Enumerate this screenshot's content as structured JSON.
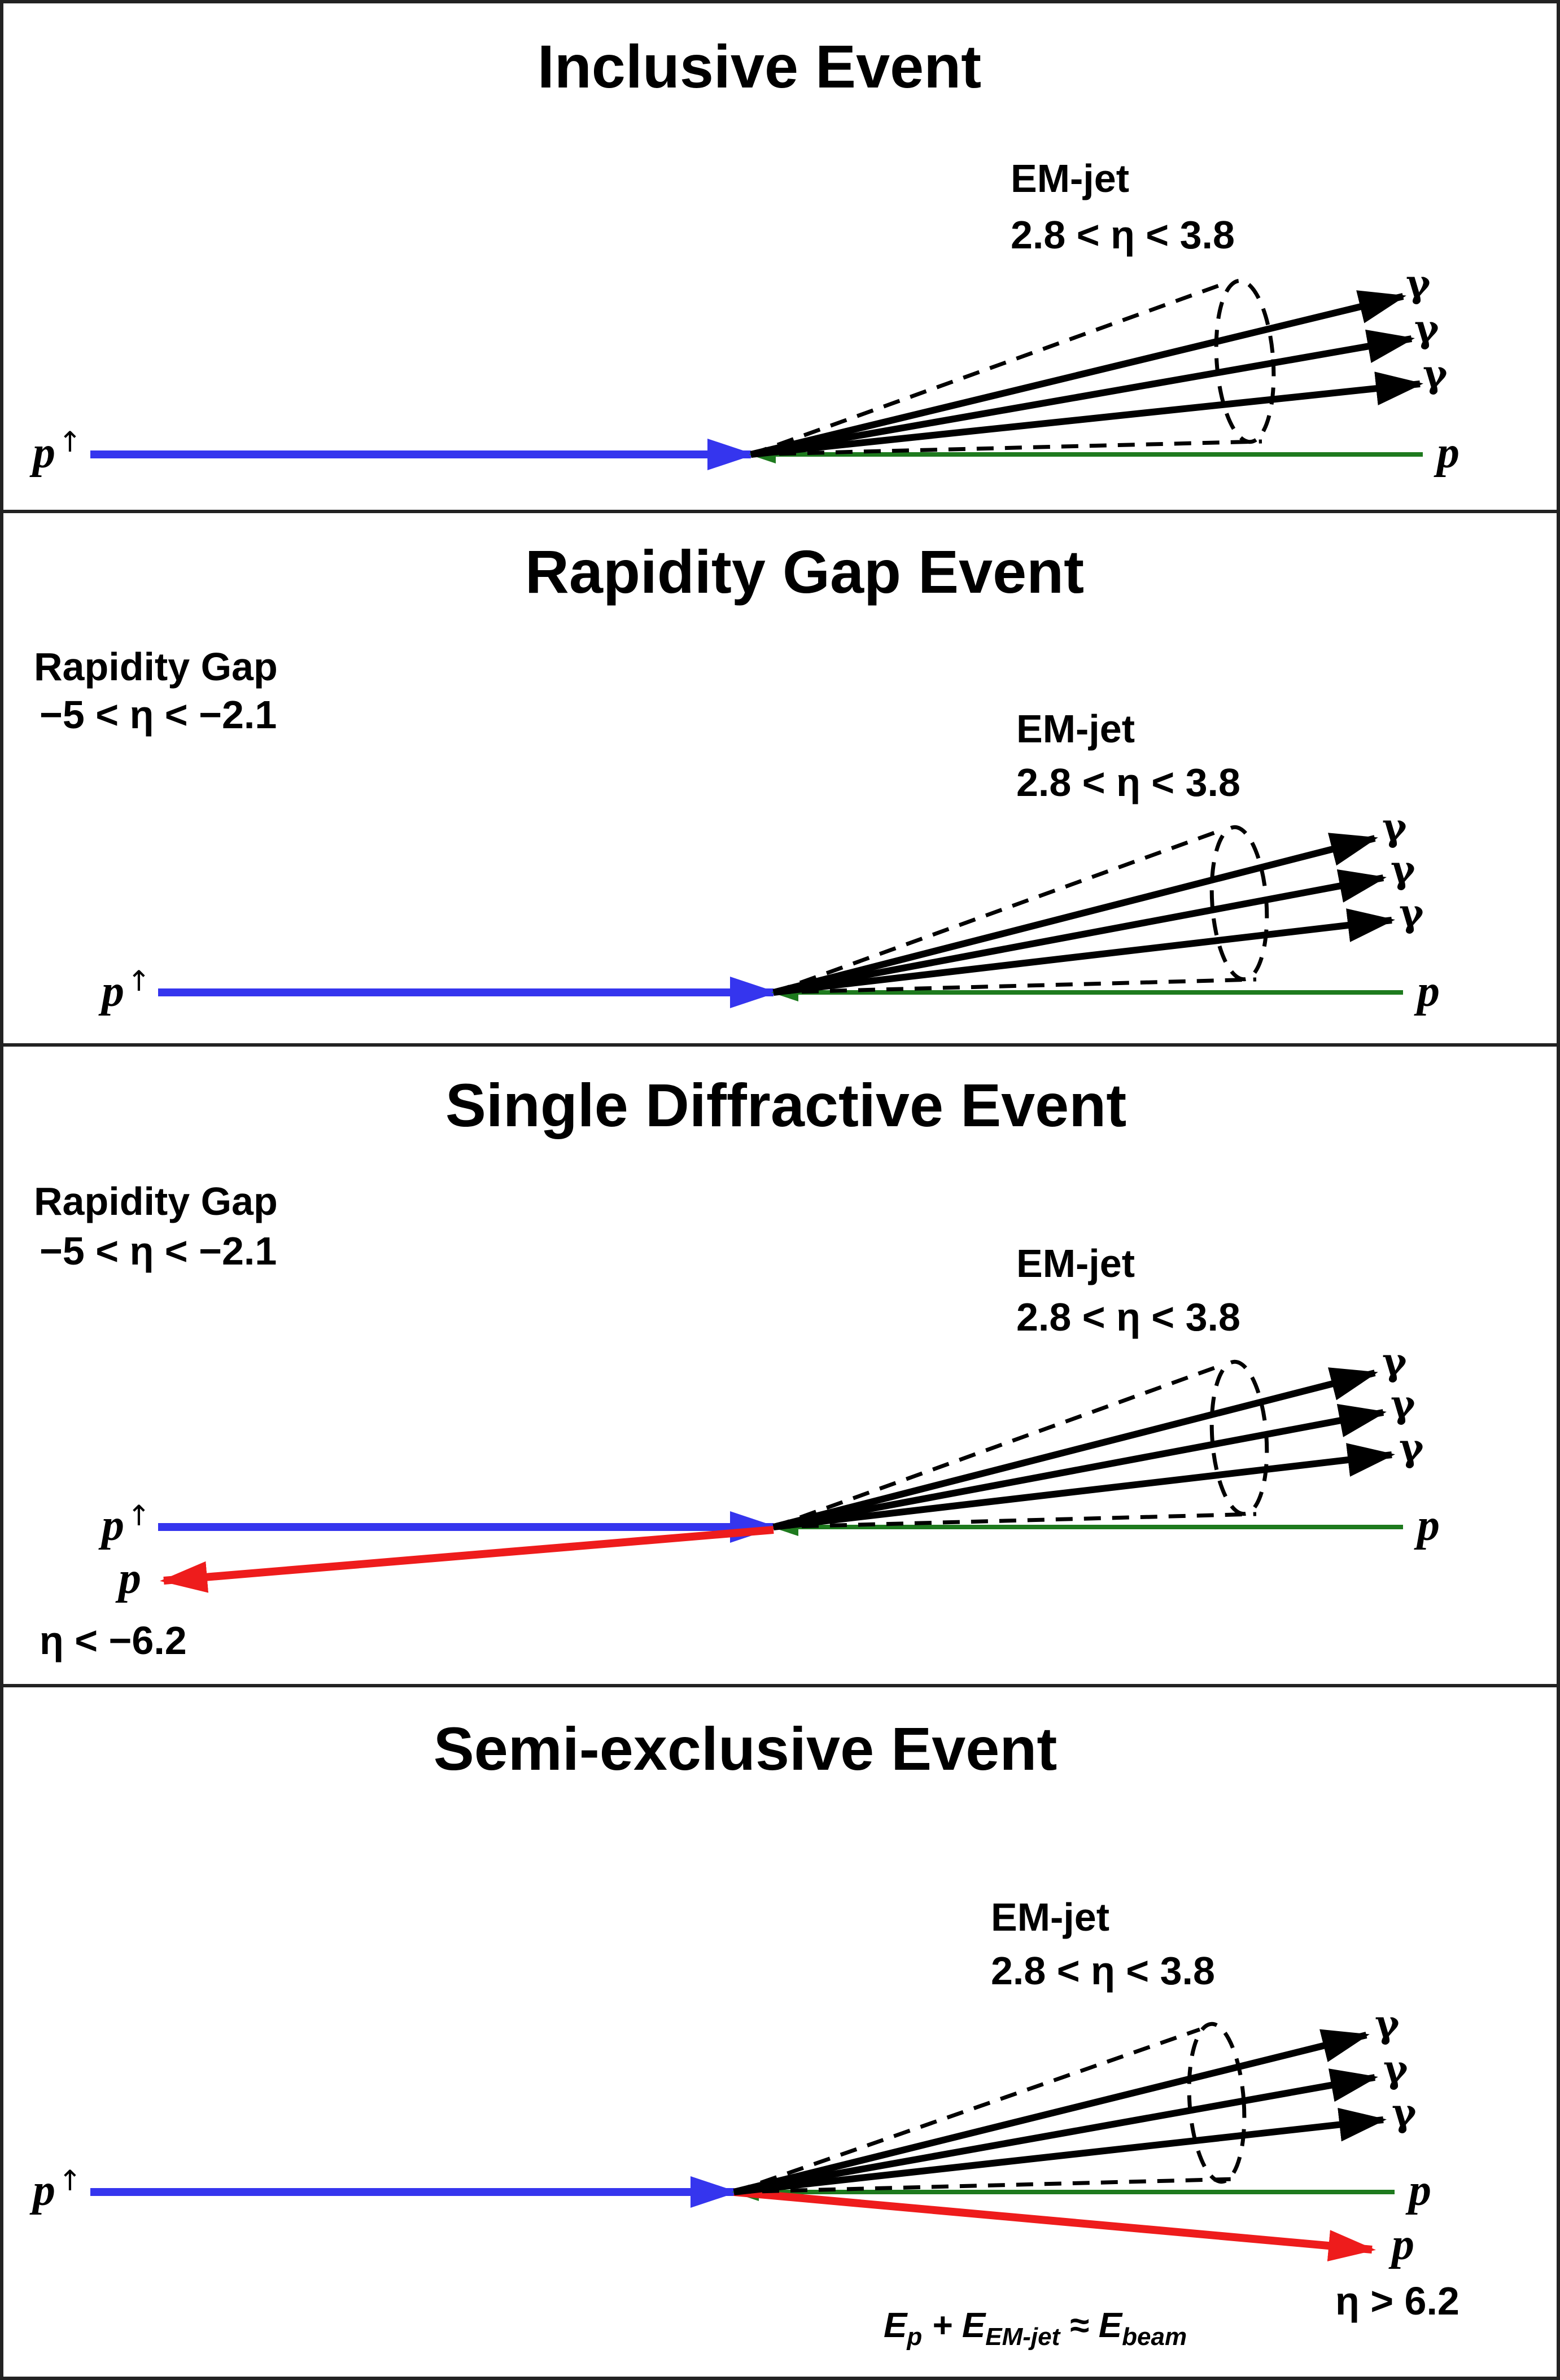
{
  "colors": {
    "polarized_beam": "#3535ee",
    "unpolarized_beam": "#1e7a1e",
    "scattered_proton": "#ee1c1c",
    "photon": "#000000",
    "frame": "#222222"
  },
  "panels": [
    {
      "title": "Inclusive Event",
      "emjet": {
        "label": "EM-jet",
        "range": "2.8 < η < 3.8"
      },
      "polarized_proton": {
        "symbol": "p",
        "arrow": "↑"
      },
      "unpolarized_proton": "p",
      "photons": [
        "γ",
        "γ",
        "γ"
      ]
    },
    {
      "title": "Rapidity Gap Event",
      "gap": {
        "label": "Rapidity Gap",
        "range": "−5 < η < −2.1"
      },
      "emjet": {
        "label": "EM-jet",
        "range": "2.8 < η < 3.8"
      },
      "polarized_proton": {
        "symbol": "p",
        "arrow": "↑"
      },
      "unpolarized_proton": "p",
      "photons": [
        "γ",
        "γ",
        "γ"
      ]
    },
    {
      "title": "Single Diffractive Event",
      "gap": {
        "label": "Rapidity Gap",
        "range": "−5 < η < −2.1"
      },
      "emjet": {
        "label": "EM-jet",
        "range": "2.8 < η < 3.8"
      },
      "polarized_proton": {
        "symbol": "p",
        "arrow": "↑"
      },
      "unpolarized_proton": "p",
      "photons": [
        "γ",
        "γ",
        "γ"
      ],
      "scattered_proton": {
        "symbol": "p",
        "eta": "η < −6.2"
      }
    },
    {
      "title": "Semi-exclusive Event",
      "emjet": {
        "label": "EM-jet",
        "range": "2.8 < η < 3.8"
      },
      "polarized_proton": {
        "symbol": "p",
        "arrow": "↑"
      },
      "unpolarized_proton": "p",
      "photons": [
        "γ",
        "γ",
        "γ"
      ],
      "scattered_proton": {
        "symbol": "p",
        "eta": "η > 6.2"
      },
      "energy_relation": {
        "e1": "E",
        "s1": "p",
        "plus": " + ",
        "e2": "E",
        "s2": "EM-jet",
        "approx": " ≈ ",
        "e3": "E",
        "s3": "beam"
      }
    }
  ]
}
